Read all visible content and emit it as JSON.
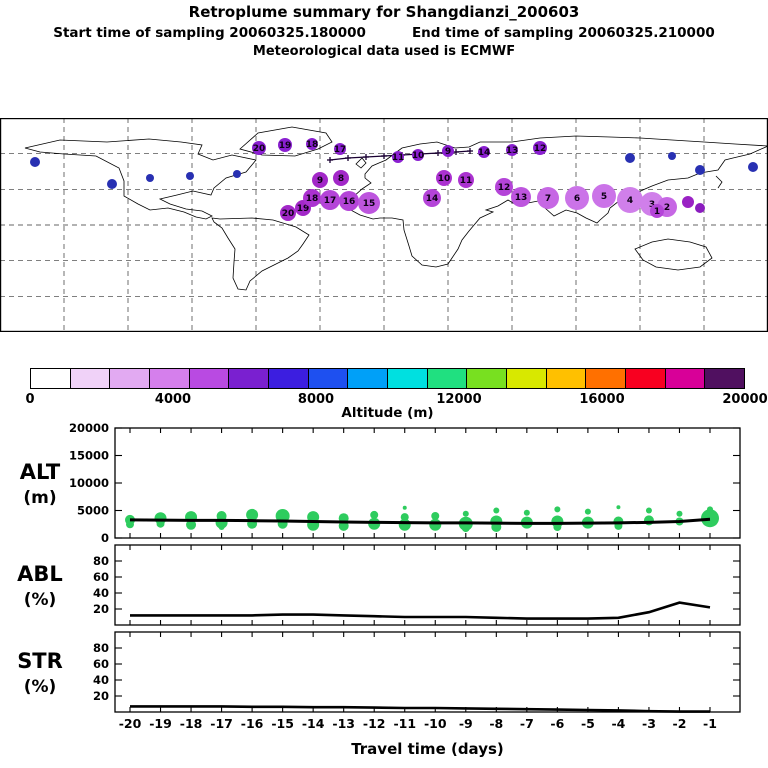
{
  "header": {
    "title": "Retroplume summary for Shangdianzi_200603",
    "start_label": "Start time of sampling 20060325.180000",
    "end_label": "End time of sampling 20060325.210000",
    "met_label": "Meteorological data used is ECMWF"
  },
  "colorbar": {
    "title": "Altitude (m)",
    "min": 0,
    "max": 20000,
    "tick_labels": [
      "0",
      "4000",
      "8000",
      "12000",
      "16000",
      "20000"
    ],
    "colors": [
      "#ffffff",
      "#f0d2f8",
      "#e2aaf2",
      "#d57fec",
      "#b94ae2",
      "#7a20d0",
      "#3c1ee0",
      "#1e50f0",
      "#00a0f8",
      "#00e0e0",
      "#20e080",
      "#78e020",
      "#d8e800",
      "#ffc000",
      "#ff7000",
      "#f80020",
      "#d80098",
      "#501060"
    ]
  },
  "xaxis": {
    "label": "Travel time (days)",
    "ticks": [
      -20,
      -19,
      -18,
      -17,
      -16,
      -15,
      -14,
      -13,
      -12,
      -11,
      -10,
      -9,
      -8,
      -7,
      -6,
      -5,
      -4,
      -3,
      -2,
      -1
    ]
  },
  "side_labels": [
    {
      "main": "ALT",
      "sub": "(m)"
    },
    {
      "main": "ABL",
      "sub": "(%)"
    },
    {
      "main": "STR",
      "sub": "(%)"
    }
  ],
  "chart_data": [
    {
      "type": "scatter",
      "name": "map-retroplume-clusters",
      "title": "Plume cluster positions on world map; marker size ~ mass fraction, color ~ altitude, label = travel day",
      "points": [
        [
          35,
          44,
          5,
          "#2830b2",
          ""
        ],
        [
          112,
          66,
          5,
          "#2830b2",
          ""
        ],
        [
          150,
          60,
          4,
          "#2830b2",
          ""
        ],
        [
          190,
          58,
          4,
          "#2830b2",
          ""
        ],
        [
          237,
          56,
          4,
          "#2830b2",
          ""
        ],
        [
          630,
          40,
          5,
          "#2830b2",
          ""
        ],
        [
          672,
          38,
          4,
          "#2830b2",
          ""
        ],
        [
          700,
          52,
          5,
          "#2830b2",
          ""
        ],
        [
          753,
          49,
          5,
          "#2830b2",
          ""
        ],
        [
          259,
          30,
          7,
          "#8a1fd0",
          "20"
        ],
        [
          285,
          27,
          7,
          "#8a1fd0",
          "19"
        ],
        [
          312,
          26,
          6,
          "#8a1fd0",
          "18"
        ],
        [
          340,
          31,
          6,
          "#8a1fd0",
          "17"
        ],
        [
          398,
          39,
          6,
          "#8a1fd0",
          "11"
        ],
        [
          418,
          37,
          6,
          "#8a1fd0",
          "10"
        ],
        [
          448,
          33,
          6,
          "#8a1fd0",
          "9"
        ],
        [
          484,
          34,
          6,
          "#8a1fd0",
          "14"
        ],
        [
          512,
          32,
          6,
          "#8a1fd0",
          "13"
        ],
        [
          540,
          30,
          7,
          "#8a1fd0",
          "12"
        ],
        [
          288,
          95,
          8,
          "#a228c8",
          "20"
        ],
        [
          303,
          90,
          8,
          "#a228c8",
          "19"
        ],
        [
          312,
          80,
          9,
          "#ab32d0",
          "18"
        ],
        [
          330,
          82,
          10,
          "#b444d8",
          "17"
        ],
        [
          349,
          83,
          10,
          "#b444d8",
          "16"
        ],
        [
          369,
          85,
          11,
          "#bd55de",
          "15"
        ],
        [
          320,
          62,
          8,
          "#a228c8",
          "9"
        ],
        [
          341,
          60,
          8,
          "#a228c8",
          "8"
        ],
        [
          432,
          80,
          9,
          "#b444d8",
          "14"
        ],
        [
          444,
          60,
          8,
          "#ab32d0",
          "10"
        ],
        [
          466,
          62,
          8,
          "#ab32d0",
          "11"
        ],
        [
          504,
          69,
          9,
          "#b444d8",
          "12"
        ],
        [
          521,
          79,
          10,
          "#bd55de",
          "13"
        ],
        [
          548,
          80,
          11,
          "#c667e4",
          "7"
        ],
        [
          577,
          80,
          12,
          "#cb73e8",
          "6"
        ],
        [
          604,
          78,
          12,
          "#cb73e8",
          "5"
        ],
        [
          630,
          82,
          13,
          "#d07fea",
          "4"
        ],
        [
          652,
          86,
          12,
          "#d07fea",
          "3"
        ],
        [
          667,
          89,
          10,
          "#c667e4",
          "2"
        ],
        [
          657,
          93,
          7,
          "#b444d8",
          "1"
        ],
        [
          688,
          84,
          6,
          "#9a22c4",
          ""
        ],
        [
          700,
          90,
          5,
          "#8a1cbe",
          ""
        ]
      ],
      "trajectory": [
        [
          330,
          42
        ],
        [
          348,
          40
        ],
        [
          366,
          39
        ],
        [
          384,
          38
        ],
        [
          402,
          37
        ],
        [
          420,
          36
        ],
        [
          438,
          35
        ],
        [
          456,
          34
        ],
        [
          470,
          33
        ]
      ]
    },
    {
      "type": "line",
      "name": "ALT",
      "ylim": [
        0,
        20000
      ],
      "yticks": [
        0,
        5000,
        10000,
        15000,
        20000
      ],
      "x": [
        -20,
        -19,
        -18,
        -17,
        -16,
        -15,
        -14,
        -13,
        -12,
        -11,
        -10,
        -9,
        -8,
        -7,
        -6,
        -5,
        -4,
        -3,
        -2,
        -1
      ],
      "mean_altitude_m": [
        3300,
        3250,
        3200,
        3200,
        3150,
        3100,
        3000,
        2900,
        2850,
        2800,
        2750,
        2750,
        2700,
        2650,
        2650,
        2700,
        2750,
        2850,
        3000,
        3400
      ],
      "cluster_color": "#2ecc5e",
      "clusters_day_alt_size": [
        [
          -20,
          3300,
          5
        ],
        [
          -20,
          2500,
          4
        ],
        [
          -19,
          3600,
          6
        ],
        [
          -19,
          2600,
          4
        ],
        [
          -18,
          3800,
          6
        ],
        [
          -18,
          2400,
          5
        ],
        [
          -17,
          4000,
          5
        ],
        [
          -17,
          2800,
          6
        ],
        [
          -17,
          2000,
          3
        ],
        [
          -16,
          4200,
          6
        ],
        [
          -16,
          2600,
          5
        ],
        [
          -15,
          4000,
          7
        ],
        [
          -15,
          2600,
          5
        ],
        [
          -14,
          3800,
          6
        ],
        [
          -14,
          2400,
          6
        ],
        [
          -13,
          3600,
          5
        ],
        [
          -13,
          2200,
          5
        ],
        [
          -12,
          4200,
          4
        ],
        [
          -12,
          2600,
          6
        ],
        [
          -11,
          3800,
          4
        ],
        [
          -11,
          2400,
          6
        ],
        [
          -11,
          5500,
          2
        ],
        [
          -10,
          4000,
          4
        ],
        [
          -10,
          2400,
          6
        ],
        [
          -9,
          4400,
          3
        ],
        [
          -9,
          2600,
          7
        ],
        [
          -9,
          1800,
          4
        ],
        [
          -8,
          5000,
          3
        ],
        [
          -8,
          3000,
          6
        ],
        [
          -8,
          2000,
          5
        ],
        [
          -7,
          4600,
          3
        ],
        [
          -7,
          2800,
          6
        ],
        [
          -6,
          5200,
          3
        ],
        [
          -6,
          3000,
          6
        ],
        [
          -6,
          2000,
          4
        ],
        [
          -5,
          4800,
          3
        ],
        [
          -5,
          2800,
          6
        ],
        [
          -4,
          5600,
          2
        ],
        [
          -4,
          3000,
          5
        ],
        [
          -4,
          2200,
          4
        ],
        [
          -3,
          5000,
          3
        ],
        [
          -3,
          3200,
          5
        ],
        [
          -2,
          4400,
          3
        ],
        [
          -2,
          3000,
          4
        ],
        [
          -1,
          3600,
          9
        ],
        [
          -1,
          5200,
          3
        ]
      ]
    },
    {
      "type": "line",
      "name": "ABL",
      "ylim": [
        0,
        100
      ],
      "yticks": [
        20,
        40,
        60,
        80
      ],
      "x": [
        -20,
        -19,
        -18,
        -17,
        -16,
        -15,
        -14,
        -13,
        -12,
        -11,
        -10,
        -9,
        -8,
        -7,
        -6,
        -5,
        -4,
        -3,
        -2,
        -1
      ],
      "values_percent": [
        12,
        12,
        12,
        12,
        12,
        13,
        13,
        12,
        11,
        10,
        10,
        10,
        9,
        8,
        8,
        8,
        9,
        16,
        28,
        22
      ]
    },
    {
      "type": "line",
      "name": "STR",
      "ylim": [
        0,
        100
      ],
      "yticks": [
        20,
        40,
        60,
        80
      ],
      "x": [
        -20,
        -19,
        -18,
        -17,
        -16,
        -15,
        -14,
        -13,
        -12,
        -11,
        -10,
        -9,
        -8,
        -7,
        -6,
        -5,
        -4,
        -3,
        -2,
        -1
      ],
      "values_percent": [
        7,
        7,
        7,
        7,
        6.5,
        6.5,
        6,
        6,
        5.5,
        5,
        5,
        4.5,
        4,
        3.5,
        3,
        2.5,
        2,
        1,
        0.5,
        0.5
      ]
    }
  ]
}
